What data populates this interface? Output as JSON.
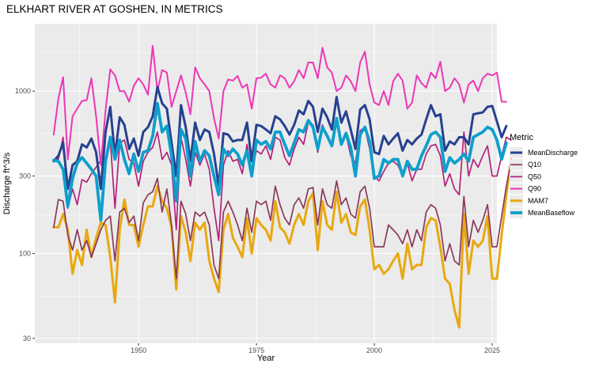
{
  "chart_data": {
    "type": "line",
    "title": "ELKHART RIVER AT GOSHEN, IN  METRICS",
    "xlabel": "Year",
    "ylabel": "Discharge ft^3/s",
    "y_scale": "log10",
    "xlim": [
      1928,
      2026
    ],
    "ylim": [
      28,
      2600
    ],
    "x_ticks": [
      1950,
      1975,
      2000,
      2025
    ],
    "y_ticks": [
      30,
      100,
      300,
      1000
    ],
    "grid": true,
    "legend": {
      "title": "Metric",
      "position": "right"
    },
    "series_order": [
      "MeanDischarge",
      "Q10",
      "Q50",
      "Q90",
      "MAM7",
      "MeanBaseflow"
    ],
    "colors": {
      "MeanDischarge": "#26418f",
      "Q10": "#8a3a5a",
      "Q50": "#b5207a",
      "Q90": "#ec37b6",
      "MAM7": "#e8a80f",
      "MeanBaseflow": "#0e9fcc"
    },
    "line_widths": {
      "MeanDischarge": 3.0,
      "Q10": 1.7,
      "Q50": 1.7,
      "Q90": 2.0,
      "MAM7": 3.0,
      "MeanBaseflow": 3.8
    },
    "x_start": 1932,
    "series": [
      {
        "name": "MAM7",
        "values": [
          145,
          145,
          175,
          140,
          75,
          105,
          85,
          140,
          95,
          125,
          155,
          150,
          95,
          50,
          140,
          215,
          150,
          150,
          110,
          150,
          195,
          195,
          260,
          210,
          190,
          145,
          60,
          170,
          135,
          90,
          155,
          140,
          155,
          90,
          70,
          58,
          140,
          175,
          125,
          110,
          95,
          165,
          100,
          165,
          150,
          140,
          120,
          210,
          145,
          135,
          115,
          150,
          175,
          150,
          210,
          235,
          105,
          210,
          150,
          140,
          240,
          155,
          175,
          135,
          130,
          195,
          215,
          140,
          80,
          85,
          75,
          80,
          90,
          100,
          70,
          115,
          80,
          85,
          85,
          145,
          165,
          160,
          110,
          70,
          65,
          45,
          35,
          175,
          75,
          120,
          110,
          120,
          170,
          70,
          70,
          130,
          230,
          380
        ]
      },
      {
        "name": "Q10",
        "values": [
          145,
          215,
          210,
          130,
          105,
          140,
          105,
          120,
          95,
          115,
          140,
          160,
          170,
          90,
          180,
          190,
          155,
          170,
          120,
          205,
          230,
          240,
          290,
          180,
          250,
          150,
          70,
          210,
          175,
          120,
          180,
          170,
          180,
          150,
          85,
          70,
          180,
          210,
          180,
          150,
          120,
          190,
          135,
          210,
          200,
          210,
          160,
          260,
          200,
          165,
          150,
          200,
          220,
          190,
          250,
          255,
          150,
          250,
          200,
          190,
          280,
          200,
          220,
          175,
          165,
          240,
          260,
          190,
          110,
          110,
          110,
          150,
          140,
          130,
          115,
          140,
          110,
          140,
          120,
          180,
          200,
          190,
          150,
          90,
          115,
          90,
          85,
          225,
          110,
          160,
          135,
          160,
          200,
          110,
          110,
          170,
          260,
          370
        ]
      },
      {
        "name": "Q50",
        "values": [
          380,
          380,
          520,
          190,
          250,
          200,
          285,
          275,
          310,
          340,
          375,
          380,
          500,
          190,
          480,
          500,
          380,
          360,
          260,
          370,
          420,
          450,
          560,
          380,
          420,
          350,
          140,
          520,
          380,
          260,
          420,
          350,
          410,
          330,
          190,
          120,
          350,
          430,
          370,
          380,
          310,
          470,
          320,
          430,
          410,
          460,
          380,
          520,
          500,
          390,
          350,
          440,
          520,
          470,
          640,
          620,
          420,
          620,
          520,
          480,
          650,
          470,
          540,
          400,
          360,
          570,
          600,
          440,
          300,
          280,
          320,
          360,
          370,
          350,
          300,
          360,
          280,
          330,
          330,
          410,
          460,
          470,
          400,
          260,
          310,
          250,
          230,
          560,
          300,
          380,
          340,
          400,
          460,
          300,
          300,
          400,
          520,
          500
        ]
      },
      {
        "name": "Q90",
        "values": [
          540,
          900,
          1220,
          380,
          700,
          780,
          870,
          880,
          1200,
          700,
          350,
          760,
          1360,
          1250,
          1000,
          1000,
          860,
          1080,
          1200,
          1100,
          950,
          1900,
          1000,
          1350,
          1300,
          800,
          1000,
          1250,
          980,
          720,
          1400,
          1200,
          1100,
          1000,
          680,
          510,
          1000,
          1180,
          1160,
          1240,
          1050,
          1100,
          780,
          1200,
          1210,
          1280,
          1100,
          1050,
          1250,
          1200,
          1050,
          1150,
          1350,
          1200,
          1500,
          1500,
          1200,
          1850,
          1400,
          1300,
          1000,
          1050,
          1250,
          1150,
          1000,
          1500,
          1750,
          1100,
          850,
          820,
          1000,
          820,
          1150,
          1280,
          1160,
          780,
          850,
          1250,
          1120,
          1050,
          1300,
          1200,
          1520,
          1000,
          1050,
          1200,
          1100,
          850,
          1100,
          1160,
          1000,
          1200,
          1280,
          1250,
          1300,
          860,
          860
        ]
      },
      {
        "name": "MeanDischarge",
        "values": [
          370,
          400,
          480,
          250,
          350,
          370,
          470,
          450,
          510,
          420,
          250,
          560,
          800,
          400,
          690,
          620,
          440,
          510,
          400,
          560,
          600,
          700,
          1060,
          840,
          780,
          480,
          300,
          820,
          600,
          370,
          640,
          500,
          580,
          560,
          410,
          260,
          550,
          540,
          490,
          500,
          500,
          640,
          370,
          620,
          610,
          580,
          550,
          700,
          670,
          610,
          540,
          620,
          760,
          720,
          870,
          800,
          560,
          780,
          690,
          580,
          920,
          640,
          750,
          580,
          440,
          770,
          820,
          670,
          420,
          410,
          530,
          470,
          510,
          550,
          430,
          500,
          470,
          510,
          540,
          670,
          820,
          700,
          720,
          430,
          490,
          470,
          520,
          520,
          470,
          720,
          730,
          740,
          800,
          810,
          650,
          520,
          610
        ]
      },
      {
        "name": "MeanBaseflow",
        "values": [
          375,
          370,
          330,
          195,
          290,
          360,
          390,
          360,
          330,
          300,
          160,
          370,
          520,
          380,
          500,
          380,
          310,
          410,
          320,
          420,
          430,
          530,
          840,
          560,
          610,
          400,
          210,
          580,
          510,
          300,
          490,
          370,
          430,
          400,
          300,
          230,
          440,
          400,
          440,
          410,
          350,
          430,
          300,
          500,
          470,
          490,
          440,
          560,
          560,
          470,
          400,
          480,
          580,
          560,
          660,
          600,
          440,
          600,
          530,
          460,
          680,
          470,
          550,
          450,
          300,
          540,
          600,
          490,
          290,
          300,
          380,
          360,
          380,
          380,
          300,
          370,
          330,
          330,
          400,
          460,
          540,
          560,
          520,
          320,
          390,
          360,
          380,
          410,
          370,
          520,
          540,
          560,
          600,
          580,
          500,
          380,
          480
        ]
      }
    ]
  }
}
